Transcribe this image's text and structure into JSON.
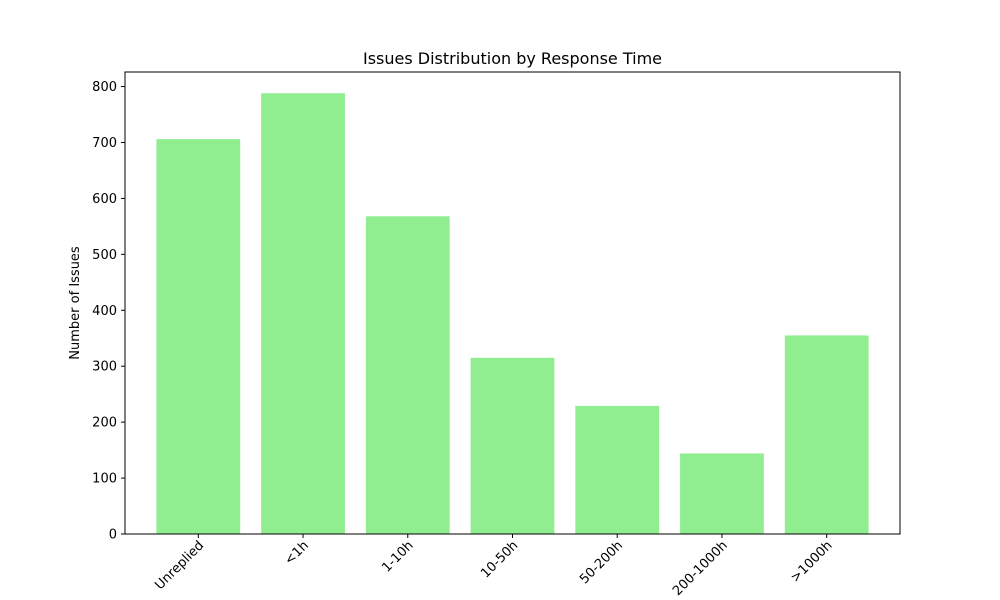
{
  "chart_data": {
    "type": "bar",
    "title": "Issues Distribution by Response Time",
    "xlabel": "",
    "ylabel": "Number of Issues",
    "categories": [
      "Unreplied",
      "<1h",
      "1-10h",
      "10-50h",
      "50-200h",
      "200-1000h",
      ">1000h"
    ],
    "values": [
      706,
      788,
      568,
      315,
      229,
      144,
      355
    ],
    "ylim": [
      0,
      826
    ],
    "yticks": [
      0,
      100,
      200,
      300,
      400,
      500,
      600,
      700,
      800
    ],
    "grid": false,
    "legend": "none",
    "colors": {
      "bar": "#90ee90",
      "axis": "#000000",
      "background": "#ffffff"
    }
  }
}
